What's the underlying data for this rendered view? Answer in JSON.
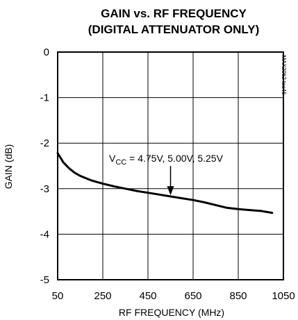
{
  "chart_data": {
    "type": "line",
    "title_line1": "GAIN vs. RF FREQUENCY",
    "title_line2": "(DIGITAL ATTENUATOR ONLY)",
    "xlabel": "RF FREQUENCY (MHz)",
    "ylabel": "GAIN (dB)",
    "xlim": [
      50,
      1050
    ],
    "ylim": [
      -5,
      0
    ],
    "x_ticks": [
      50,
      250,
      450,
      650,
      850,
      1050
    ],
    "x_tick_labels": [
      "50",
      "250",
      "450",
      "650",
      "850",
      "1050"
    ],
    "y_ticks": [
      0,
      -1,
      -2,
      -3,
      -4,
      -5
    ],
    "y_tick_labels": [
      "0",
      "-1",
      "-2",
      "-3",
      "-4",
      "-5"
    ],
    "grid": true,
    "annotation": {
      "prefix": "V",
      "subscript": "CC",
      "text": " = 4.75V, 5.00V, 5.25V",
      "arrow_to": {
        "x": 550,
        "y": -3.16
      }
    },
    "figure_tag": "MAX2062 toc46",
    "series": [
      {
        "x": [
          50,
          60,
          75,
          100,
          125,
          150,
          200,
          250,
          300,
          350,
          400,
          450,
          500,
          550,
          600,
          650,
          700,
          750,
          800,
          850,
          900,
          950,
          1000
        ],
        "y": [
          -2.22,
          -2.3,
          -2.42,
          -2.55,
          -2.65,
          -2.72,
          -2.82,
          -2.89,
          -2.95,
          -3.0,
          -3.05,
          -3.09,
          -3.13,
          -3.17,
          -3.21,
          -3.25,
          -3.3,
          -3.36,
          -3.42,
          -3.45,
          -3.47,
          -3.49,
          -3.53
        ]
      }
    ]
  }
}
